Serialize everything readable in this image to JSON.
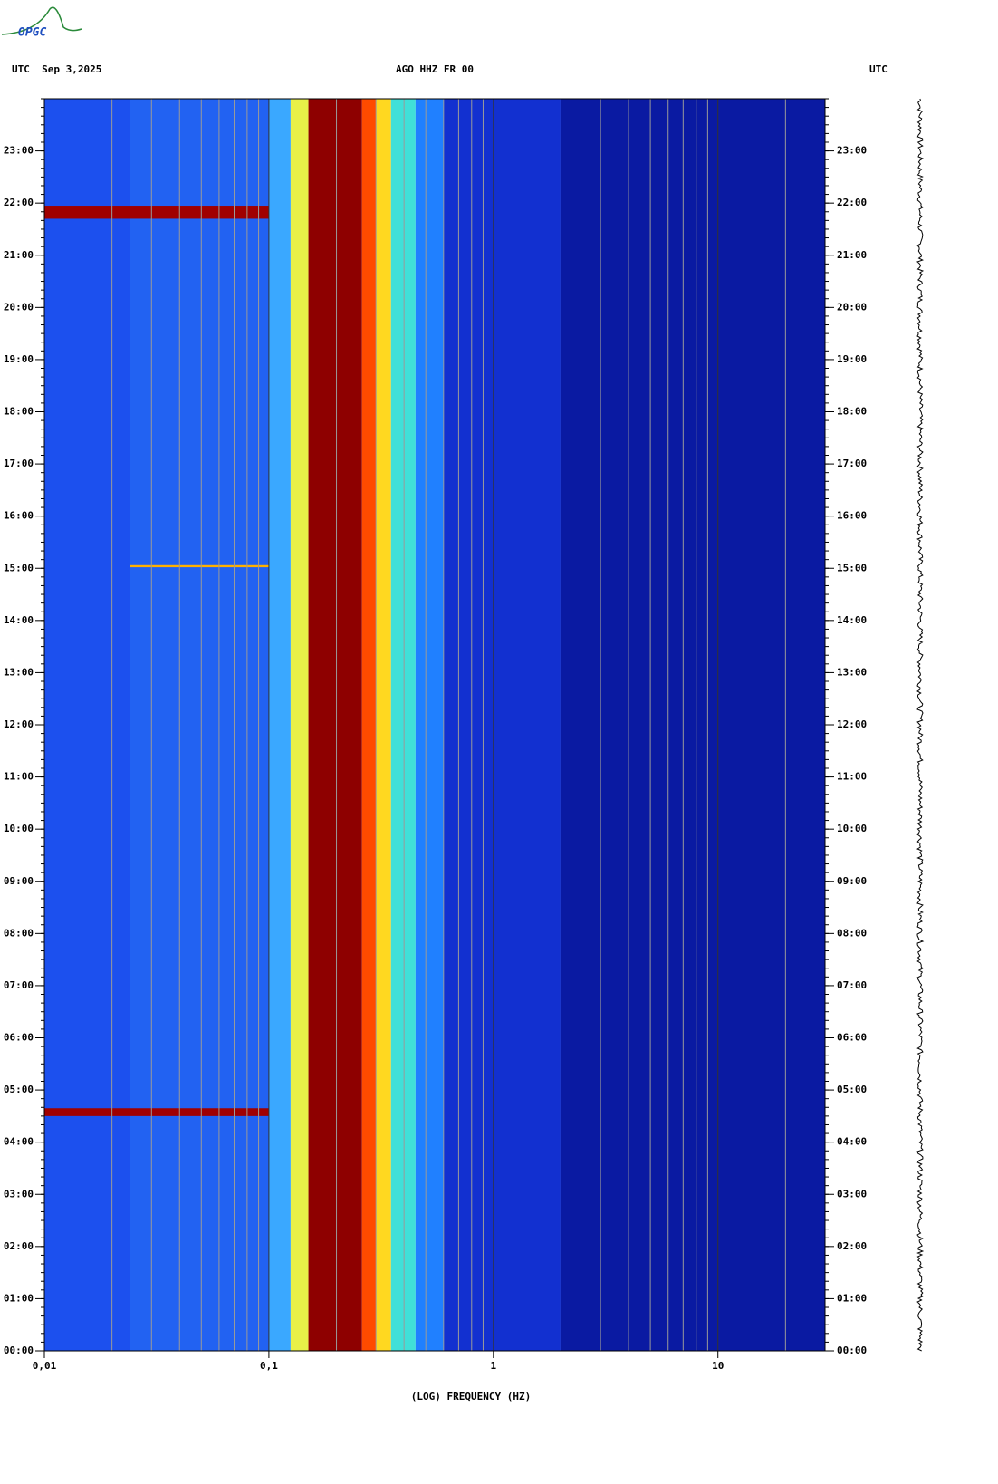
{
  "logo": "OPGC",
  "chart_data": {
    "type": "spectrogram",
    "title": "AGO HHZ FR 00",
    "left_header": "UTC  Sep 3,2025",
    "right_header": "UTC",
    "xlabel": "(LOG) FREQUENCY (HZ)",
    "xscale": "log",
    "xlim": [
      0.01,
      30
    ],
    "xticks": [
      {
        "value": 0.01,
        "label": "0,01"
      },
      {
        "value": 0.1,
        "label": "0,1"
      },
      {
        "value": 1,
        "label": "1"
      },
      {
        "value": 10,
        "label": "10"
      }
    ],
    "xgrid": [
      0.02,
      0.03,
      0.04,
      0.05,
      0.06,
      0.07,
      0.08,
      0.09,
      0.2,
      0.3,
      0.4,
      0.5,
      0.6,
      0.7,
      0.8,
      0.9,
      2,
      3,
      4,
      5,
      6,
      7,
      8,
      9,
      20
    ],
    "ylim": [
      0,
      24
    ],
    "yticks": [
      {
        "value": 0,
        "label": "00:00"
      },
      {
        "value": 1,
        "label": "01:00"
      },
      {
        "value": 2,
        "label": "02:00"
      },
      {
        "value": 3,
        "label": "03:00"
      },
      {
        "value": 4,
        "label": "04:00"
      },
      {
        "value": 5,
        "label": "05:00"
      },
      {
        "value": 6,
        "label": "06:00"
      },
      {
        "value": 7,
        "label": "07:00"
      },
      {
        "value": 8,
        "label": "08:00"
      },
      {
        "value": 9,
        "label": "09:00"
      },
      {
        "value": 10,
        "label": "10:00"
      },
      {
        "value": 11,
        "label": "11:00"
      },
      {
        "value": 12,
        "label": "12:00"
      },
      {
        "value": 13,
        "label": "13:00"
      },
      {
        "value": 14,
        "label": "14:00"
      },
      {
        "value": 15,
        "label": "15:00"
      },
      {
        "value": 16,
        "label": "16:00"
      },
      {
        "value": 17,
        "label": "17:00"
      },
      {
        "value": 18,
        "label": "18:00"
      },
      {
        "value": 19,
        "label": "19:00"
      },
      {
        "value": 20,
        "label": "20:00"
      },
      {
        "value": 21,
        "label": "21:00"
      },
      {
        "value": 22,
        "label": "22:00"
      },
      {
        "value": 23,
        "label": "23:00"
      }
    ],
    "bands": [
      {
        "from": 0.01,
        "to": 0.024,
        "color": "#1c50ee"
      },
      {
        "from": 0.024,
        "to": 0.1,
        "color": "#2262f2"
      },
      {
        "from": 0.1,
        "to": 0.125,
        "color": "#3aa8ff"
      },
      {
        "from": 0.125,
        "to": 0.15,
        "color": "#e8f048"
      },
      {
        "from": 0.15,
        "to": 0.26,
        "color": "#8e0000"
      },
      {
        "from": 0.26,
        "to": 0.3,
        "color": "#ff4a00"
      },
      {
        "from": 0.3,
        "to": 0.35,
        "color": "#ffd820"
      },
      {
        "from": 0.35,
        "to": 0.45,
        "color": "#40e0d8"
      },
      {
        "from": 0.45,
        "to": 0.6,
        "color": "#2080ff"
      },
      {
        "from": 0.6,
        "to": 2,
        "color": "#1230d0"
      },
      {
        "from": 2,
        "to": 30,
        "color": "#0a1aa2"
      }
    ],
    "events": [
      {
        "from": 0.01,
        "to": 0.1,
        "start": 21.7,
        "end": 21.95,
        "color": "#a00000"
      },
      {
        "from": 0.01,
        "to": 0.1,
        "start": 4.5,
        "end": 4.65,
        "color": "#a00000"
      },
      {
        "from": 0.024,
        "to": 0.1,
        "start": 15.02,
        "end": 15.06,
        "color": "#ffb000"
      }
    ]
  }
}
